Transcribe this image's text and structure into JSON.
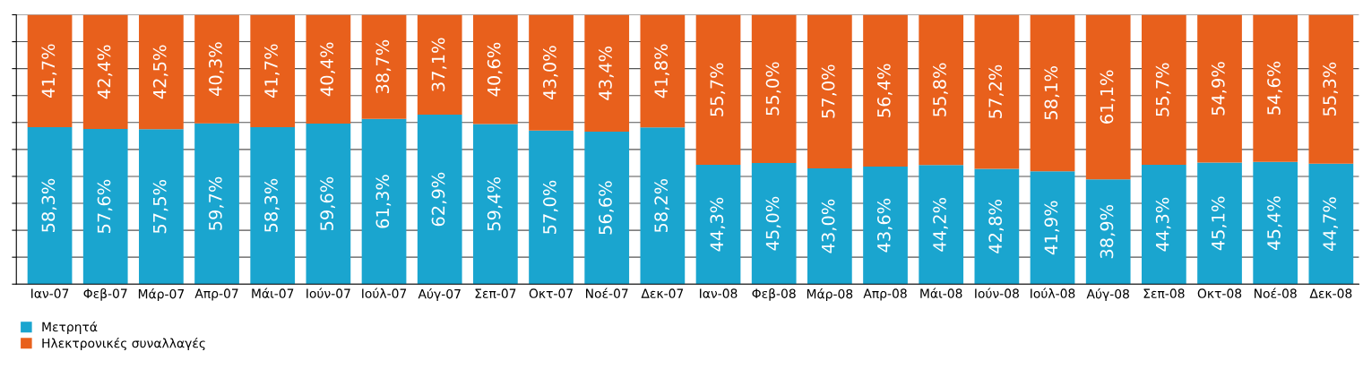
{
  "chart_data": {
    "type": "bar",
    "stacked": true,
    "categories": [
      "Ιαν-07",
      "Φεβ-07",
      "Μάρ-07",
      "Απρ-07",
      "Μάι-07",
      "Ιούν-07",
      "Ιούλ-07",
      "Αύγ-07",
      "Σεπ-07",
      "Οκτ-07",
      "Νοέ-07",
      "Δεκ-07",
      "Ιαν-08",
      "Φεβ-08",
      "Μάρ-08",
      "Απρ-08",
      "Μάι-08",
      "Ιούν-08",
      "Ιούλ-08",
      "Αύγ-08",
      "Σεπ-08",
      "Οκτ-08",
      "Νοέ-08",
      "Δεκ-08"
    ],
    "series": [
      {
        "name": "Μετρητά",
        "color": "#1aa5cf",
        "values": [
          58.3,
          57.6,
          57.5,
          59.7,
          58.3,
          59.6,
          61.3,
          62.9,
          59.4,
          57.0,
          56.6,
          58.2,
          44.3,
          45.0,
          43.0,
          43.6,
          44.2,
          42.8,
          41.9,
          38.9,
          44.3,
          45.1,
          45.4,
          44.7
        ],
        "value_labels": [
          "58,3%",
          "57,6%",
          "57,5%",
          "59,7%",
          "58,3%",
          "59,6%",
          "61,3%",
          "62,9%",
          "59,4%",
          "57,0%",
          "56,6%",
          "58,2%",
          "44,3%",
          "45,0%",
          "43,0%",
          "43,6%",
          "44,2%",
          "42,8%",
          "41,9%",
          "38,9%",
          "44,3%",
          "45,1%",
          "45,4%",
          "44,7%"
        ]
      },
      {
        "name": "Ηλεκτρονικές συναλλαγές",
        "color": "#e8601c",
        "values": [
          41.7,
          42.4,
          42.5,
          40.3,
          41.7,
          40.4,
          38.7,
          37.1,
          40.6,
          43.0,
          43.4,
          41.8,
          55.7,
          55.0,
          57.0,
          56.4,
          55.8,
          57.2,
          58.1,
          61.1,
          55.7,
          54.9,
          54.6,
          55.3
        ],
        "value_labels": [
          "41,7%",
          "42,4%",
          "42,5%",
          "40,3%",
          "41,7%",
          "40,4%",
          "38,7%",
          "37,1%",
          "40,6%",
          "43,0%",
          "43,4%",
          "41,8%",
          "55,7%",
          "55,0%",
          "57,0%",
          "56,4%",
          "55,8%",
          "57,2%",
          "58,1%",
          "61,1%",
          "55,7%",
          "54,9%",
          "54,6%",
          "55,3%"
        ]
      }
    ],
    "ylim": [
      0,
      100
    ],
    "yticks": [
      {
        "value": 0,
        "label": null
      },
      {
        "value": 10,
        "label": null
      },
      {
        "value": 20,
        "label": null
      },
      {
        "value": 30,
        "label": null
      },
      {
        "value": 40,
        "label": null
      },
      {
        "value": 50,
        "label": null
      },
      {
        "value": 60,
        "label": null
      },
      {
        "value": 70,
        "label": null
      },
      {
        "value": 80,
        "label": null
      },
      {
        "value": 90,
        "label": null
      },
      {
        "value": 100,
        "label": null
      }
    ],
    "tick_labels": "x",
    "grid": "y",
    "legend": "bottom left"
  }
}
